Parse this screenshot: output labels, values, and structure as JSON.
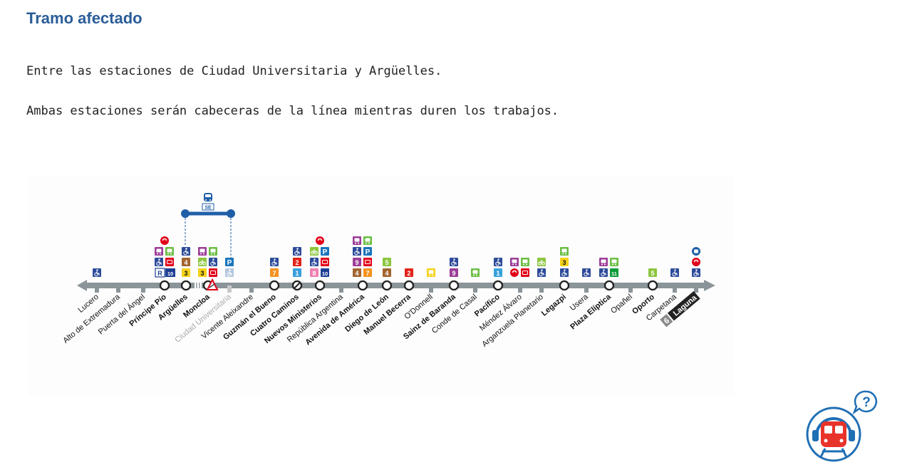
{
  "section": {
    "title": "Tramo afectado",
    "paragraphs": [
      "Entre las estaciones de Ciudad Universitaria y Argüelles.",
      "Ambas estaciones serán cabeceras de la línea mientras duren los trabajos."
    ]
  },
  "line_map": {
    "line_number": "6",
    "bus_service_label": "SE",
    "colors": {
      "track": "#8a9499",
      "accessible": "#2d4b9a",
      "service_bus": "#1f5fa8",
      "closed_station": "#c9c9c9",
      "warning": "#e2001a",
      "terminal_label_bg": "#222222",
      "line_badge_bg": "#8a8a8a"
    },
    "stations": [
      {
        "name": "Lucero",
        "bold": false,
        "closed": false,
        "stop": "tick",
        "icons": [
          "acc"
        ]
      },
      {
        "name": "Alto de Extremadura",
        "bold": false,
        "closed": false,
        "stop": "tick",
        "icons": []
      },
      {
        "name": "Puerta del Ángel",
        "bold": false,
        "closed": false,
        "stop": "tick",
        "icons": []
      },
      {
        "name": "Príncipe Pío",
        "bold": true,
        "closed": false,
        "stop": "circle",
        "icons": [
          "R10",
          "acc|red",
          "bus|bus2",
          "renfe"
        ]
      },
      {
        "name": "Argüelles",
        "bold": true,
        "closed": false,
        "stop": "circle",
        "icons": [
          "3",
          "4",
          "acc"
        ]
      },
      {
        "name": "Moncloa",
        "bold": true,
        "closed": false,
        "stop": "circle",
        "icons": [
          "3|red",
          "bici|acc",
          "bus|bus2"
        ]
      },
      {
        "name": "Ciudad Universitaria",
        "bold": false,
        "closed": true,
        "stop": "tick",
        "icons": [
          "accg",
          "P"
        ]
      },
      {
        "name": "Vicente Aleixandre",
        "bold": false,
        "closed": false,
        "stop": "tick",
        "icons": []
      },
      {
        "name": "Guzmán el Bueno",
        "bold": true,
        "closed": false,
        "stop": "circle",
        "icons": [
          "7",
          "acc"
        ]
      },
      {
        "name": "Cuatro Caminos",
        "bold": true,
        "closed": false,
        "stop": "slash",
        "icons": [
          "1",
          "2",
          "acc"
        ]
      },
      {
        "name": "Nuevos Ministerios",
        "bold": true,
        "closed": false,
        "stop": "circle",
        "icons": [
          "8|10",
          "acc|red",
          "bici|P",
          "renfe"
        ]
      },
      {
        "name": "República Argentina",
        "bold": false,
        "closed": false,
        "stop": "tick",
        "icons": []
      },
      {
        "name": "Avenida de América",
        "bold": true,
        "closed": false,
        "stop": "circle",
        "icons": [
          "4|7",
          "9|red",
          "acc|P",
          "bus|bus2"
        ]
      },
      {
        "name": "Diego de León",
        "bold": true,
        "closed": false,
        "stop": "circle",
        "icons": [
          "4",
          "5"
        ]
      },
      {
        "name": "Manuel Becerra",
        "bold": true,
        "closed": false,
        "stop": "circle",
        "icons": [
          "2"
        ]
      },
      {
        "name": "O'Donnell",
        "bold": false,
        "closed": false,
        "stop": "tick",
        "icons": [
          "busy"
        ]
      },
      {
        "name": "Sainz de Baranda",
        "bold": true,
        "closed": false,
        "stop": "circle",
        "icons": [
          "9",
          "acc"
        ]
      },
      {
        "name": "Conde de Casal",
        "bold": false,
        "closed": false,
        "stop": "tick",
        "icons": [
          "bus2"
        ]
      },
      {
        "name": "Pacífico",
        "bold": true,
        "closed": false,
        "stop": "circle",
        "icons": [
          "1",
          "acc"
        ]
      },
      {
        "name": "Méndez Álvaro",
        "bold": false,
        "closed": false,
        "stop": "tick",
        "icons": [
          "renfe|red",
          "bus|bus2"
        ]
      },
      {
        "name": "Arganzuela Planetario",
        "bold": false,
        "closed": false,
        "stop": "tick",
        "icons": [
          "acc",
          "bici"
        ]
      },
      {
        "name": "Legazpi",
        "bold": true,
        "closed": false,
        "stop": "circle",
        "icons": [
          "acc",
          "3",
          "bus2"
        ]
      },
      {
        "name": "Usera",
        "bold": false,
        "closed": false,
        "stop": "tick",
        "icons": [
          "acc"
        ]
      },
      {
        "name": "Plaza Elíptica",
        "bold": true,
        "closed": false,
        "stop": "circle",
        "icons": [
          "acc|11",
          "bus|bus2"
        ]
      },
      {
        "name": "Opañel",
        "bold": false,
        "closed": false,
        "stop": "tick",
        "icons": []
      },
      {
        "name": "Oporto",
        "bold": true,
        "closed": false,
        "stop": "circle",
        "icons": [
          "5"
        ]
      },
      {
        "name": "Carpetana",
        "bold": false,
        "closed": false,
        "stop": "tick",
        "icons": [
          "acc"
        ]
      },
      {
        "name": "Laguna",
        "bold": true,
        "closed": false,
        "stop": "tick",
        "terminal": true,
        "icons": [
          "acc",
          "renfe",
          "metro"
        ]
      }
    ],
    "line_colors": {
      "1": "#3aa0dc",
      "2": "#e2231a",
      "3": "#f4d21a",
      "4": "#a2652f",
      "5": "#8cc63e",
      "7": "#f6921e",
      "8": "#ef7fb1",
      "9": "#9c3d97",
      "10": "#1c3f94",
      "11": "#0a9a3a"
    }
  },
  "assistant": {
    "icon_name": "metro-help-assistant-icon",
    "symbol": "?"
  }
}
